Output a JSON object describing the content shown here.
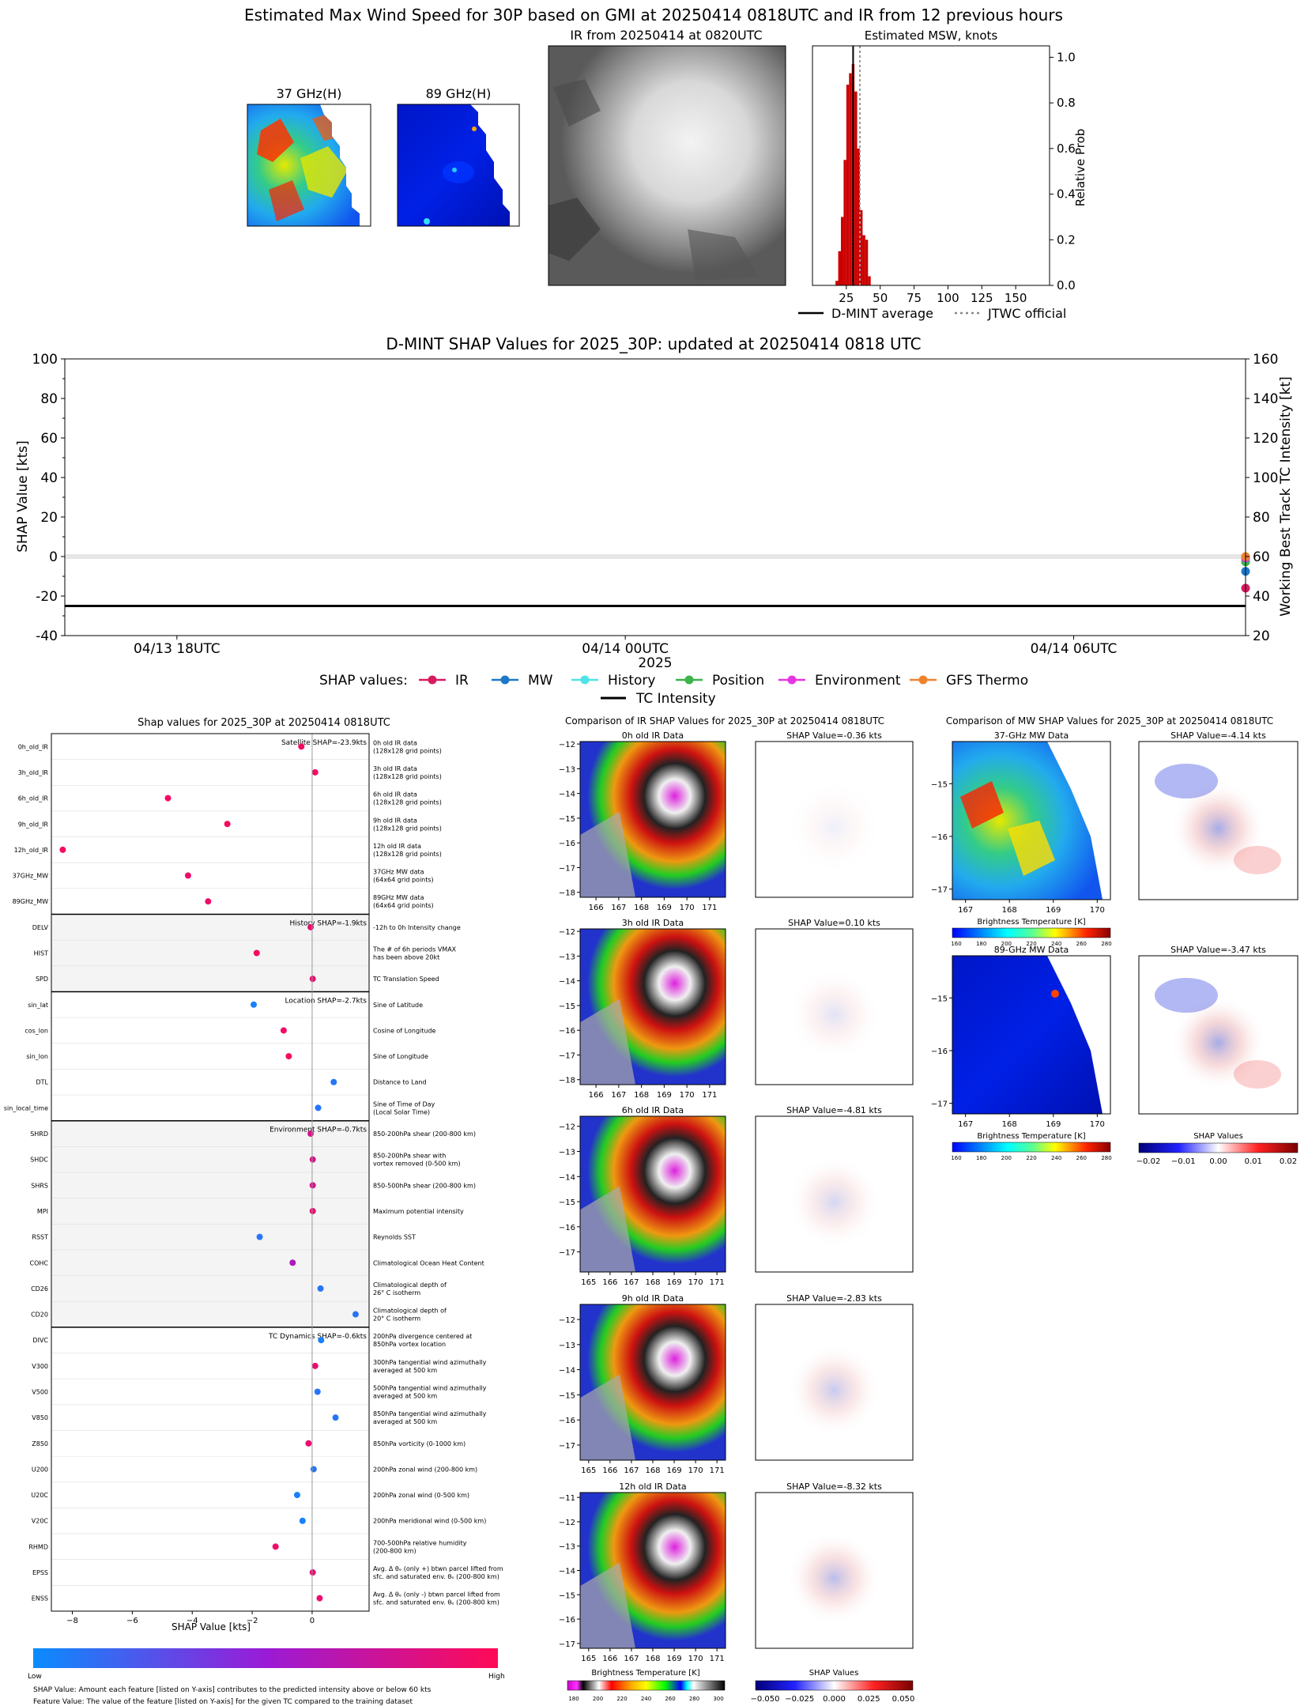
{
  "header": {
    "title": "Estimated Max Wind Speed for 30P based on GMI at 20250414 0818UTC and IR from 12 previous hours"
  },
  "top_panels": {
    "mw37_title": "37 GHz(H)",
    "mw89_title": "89 GHz(H)",
    "ir_title": "IR from 20250414 at 0820UTC",
    "msw_title": "Estimated MSW, knots",
    "msw_ylabel": "Relative Prob",
    "legend_dmint": "D-MINT average",
    "legend_jtwc": "JTWC official"
  },
  "shap_timeseries": {
    "title": "D-MINT SHAP Values for 2025_30P: updated at 20250414 0818 UTC",
    "ylabel_left": "SHAP Value [kts]",
    "ylabel_right": "Working Best Track TC Intensity [kt]",
    "xlabel": "2025",
    "legend_label": "SHAP values:",
    "tc_intensity_label": "TC Intensity"
  },
  "feature_panel": {
    "title": "Shap values for 2025_30P at 20250414 0818UTC",
    "xlabel": "SHAP Value [kts]",
    "cbar_low": "Low",
    "cbar_high": "High",
    "note1": "SHAP Value: Amount each feature [listed on Y-axis] contributes to the predicted intensity above or below 60 kts",
    "note2": "Feature Value: The value of the feature [listed on Y-axis] for the given TC compared to the training dataset"
  },
  "ir_compare": {
    "title": "Comparison of IR SHAP Values for 2025_30P at 20250414 0818UTC",
    "panels": [
      {
        "title": "0h old IR Data",
        "shap_title": "SHAP Value=-0.36 kts"
      },
      {
        "title": "3h old IR Data",
        "shap_title": "SHAP Value=0.10 kts"
      },
      {
        "title": "6h old IR Data",
        "shap_title": "SHAP Value=-4.81 kts"
      },
      {
        "title": "9h old IR Data",
        "shap_title": "SHAP Value=-2.83 kts"
      },
      {
        "title": "12h old IR Data",
        "shap_title": "SHAP Value=-8.32 kts"
      }
    ],
    "cbar_label": "Brightness Temperature [K]",
    "shap_cbar_label": "SHAP Values"
  },
  "mw_compare": {
    "title": "Comparison of MW SHAP Values for 2025_30P at 20250414 0818UTC",
    "panels": [
      {
        "title": "37-GHz MW Data",
        "shap_title": "SHAP Value=-4.14 kts"
      },
      {
        "title": "89-GHz MW Data",
        "shap_title": "SHAP Value=-3.47 kts"
      }
    ],
    "cbar_label": "Brightness Temperature [K]",
    "shap_cbar_label": "SHAP Values"
  },
  "chart_data": [
    {
      "type": "bar",
      "name": "msw_histogram",
      "title": "Estimated MSW, knots",
      "ylabel": "Relative Prob",
      "xlim": [
        0,
        175
      ],
      "ylim": [
        0,
        1.05
      ],
      "xticks": [
        25,
        50,
        75,
        100,
        125,
        150
      ],
      "yticks": [
        0.0,
        0.2,
        0.4,
        0.6,
        0.8,
        1.0
      ],
      "x": [
        18,
        20,
        22,
        24,
        26,
        28,
        30,
        32,
        34,
        36,
        38,
        40,
        42
      ],
      "values": [
        0.02,
        0.15,
        0.3,
        0.55,
        0.88,
        0.93,
        0.97,
        0.85,
        0.6,
        0.33,
        0.22,
        0.2,
        0.04
      ],
      "dmint_average": 30,
      "jtwc_official": 35,
      "legend_position": "below"
    },
    {
      "type": "line",
      "name": "shap_timeseries",
      "title": "D-MINT SHAP Values for 2025_30P: updated at 20250414 0818 UTC",
      "xlabel": "2025",
      "ylabel": "SHAP Value [kts]",
      "ylabel_right": "Working Best Track TC Intensity [kt]",
      "ylim": [
        -40,
        100
      ],
      "ylim_right": [
        20,
        160
      ],
      "yticks": [
        -40,
        -20,
        0,
        20,
        40,
        60,
        80,
        100
      ],
      "yticks_right": [
        20,
        40,
        60,
        80,
        100,
        120,
        140,
        160
      ],
      "xticks": [
        "04/13 18UTC",
        "04/14 00UTC",
        "04/14 06UTC"
      ],
      "x_hours": [
        0,
        6,
        12
      ],
      "xlim_hours": [
        -1.5,
        14.3
      ],
      "tc_intensity": {
        "x_hours": [
          -1.5,
          14.3
        ],
        "values": [
          35,
          35
        ]
      },
      "series": [
        {
          "name": "IR",
          "color": "#d81b60",
          "x_hours": [
            14.3
          ],
          "values": [
            -16
          ]
        },
        {
          "name": "MW",
          "color": "#1e78c8",
          "x_hours": [
            14.3
          ],
          "values": [
            -7.5
          ]
        },
        {
          "name": "History",
          "color": "#4fe3e8",
          "x_hours": [
            14.3
          ],
          "values": [
            -1.9
          ]
        },
        {
          "name": "Position",
          "color": "#3cb44b",
          "x_hours": [
            14.3
          ],
          "values": [
            -2.7
          ]
        },
        {
          "name": "Environment",
          "color": "#e535e6",
          "x_hours": [
            14.3
          ],
          "values": [
            -0.7
          ]
        },
        {
          "name": "GFS Thermo",
          "color": "#f0822d",
          "x_hours": [
            14.3
          ],
          "values": [
            0
          ]
        }
      ],
      "legend_position": "below"
    },
    {
      "type": "scatter",
      "name": "feature_shap",
      "title": "Shap values for 2025_30P at 20250414 0818UTC",
      "xlabel": "SHAP Value [kts]",
      "xlim": [
        -8.7,
        1.9
      ],
      "xticks": [
        -8,
        -6,
        -4,
        -2,
        0
      ],
      "groups": [
        {
          "label": "Satellite SHAP=-23.9kts",
          "shaded": false,
          "features": [
            {
              "name": "0h_old_IR",
              "desc": [
                "0h old IR data",
                "(128x128 grid points)"
              ],
              "shap": -0.36,
              "value": 0.95
            },
            {
              "name": "3h_old_IR",
              "desc": [
                "3h old IR data",
                "(128x128 grid points)"
              ],
              "shap": 0.1,
              "value": 0.95
            },
            {
              "name": "6h_old_IR",
              "desc": [
                "6h old IR data",
                "(128x128 grid points)"
              ],
              "shap": -4.81,
              "value": 0.95
            },
            {
              "name": "9h_old_IR",
              "desc": [
                "9h old IR data",
                "(128x128 grid points)"
              ],
              "shap": -2.83,
              "value": 0.95
            },
            {
              "name": "12h_old_IR",
              "desc": [
                "12h old IR data",
                "(128x128 grid points)"
              ],
              "shap": -8.32,
              "value": 0.95
            },
            {
              "name": "37GHz_MW",
              "desc": [
                "37GHz MW data",
                "(64x64 grid points)"
              ],
              "shap": -4.14,
              "value": 0.92
            },
            {
              "name": "89GHz_MW",
              "desc": [
                "89GHz MW data",
                "(64x64 grid points)"
              ],
              "shap": -3.47,
              "value": 0.92
            }
          ]
        },
        {
          "label": "History SHAP=-1.9kts",
          "shaded": true,
          "features": [
            {
              "name": "DELV",
              "desc": [
                "-12h to 0h Intensity change"
              ],
              "shap": -0.05,
              "value": 0.9
            },
            {
              "name": "HIST",
              "desc": [
                "The # of 6h periods VMAX",
                "has been above 20kt"
              ],
              "shap": -1.85,
              "value": 0.95
            },
            {
              "name": "SPD",
              "desc": [
                "TC Translation Speed"
              ],
              "shap": 0.02,
              "value": 0.9
            }
          ]
        },
        {
          "label": "Location SHAP=-2.7kts",
          "shaded": false,
          "features": [
            {
              "name": "sin_lat",
              "desc": [
                "Sine of Latitude"
              ],
              "shap": -1.95,
              "value": 0.05
            },
            {
              "name": "cos_lon",
              "desc": [
                "Cosine of Longitude"
              ],
              "shap": -0.95,
              "value": 0.92
            },
            {
              "name": "sin_lon",
              "desc": [
                "Sine of Longitude"
              ],
              "shap": -0.78,
              "value": 0.95
            },
            {
              "name": "DTL",
              "desc": [
                "Distance to Land"
              ],
              "shap": 0.72,
              "value": 0.1
            },
            {
              "name": "sin_local_time",
              "desc": [
                "Sine of Time of Day",
                "(Local Solar Time)"
              ],
              "shap": 0.2,
              "value": 0.1
            }
          ]
        },
        {
          "label": "Environment SHAP=-0.7kts",
          "shaded": true,
          "features": [
            {
              "name": "SHRD",
              "desc": [
                "850-200hPa shear (200-800 km)"
              ],
              "shap": -0.05,
              "value": 0.8
            },
            {
              "name": "SHDC",
              "desc": [
                "850-200hPa shear with",
                "vortex removed (0-500 km)"
              ],
              "shap": 0.02,
              "value": 0.8
            },
            {
              "name": "SHRS",
              "desc": [
                "850-500hPa shear (200-800 km)"
              ],
              "shap": 0.02,
              "value": 0.8
            },
            {
              "name": "MPI",
              "desc": [
                "Maximum potential intensity"
              ],
              "shap": 0.02,
              "value": 0.9
            },
            {
              "name": "RSST",
              "desc": [
                "Reynolds SST"
              ],
              "shap": -1.75,
              "value": 0.1
            },
            {
              "name": "COHC",
              "desc": [
                "Climatological Ocean Heat Content"
              ],
              "shap": -0.65,
              "value": 0.6
            },
            {
              "name": "CD26",
              "desc": [
                "Climatological depth of",
                "26° C isotherm"
              ],
              "shap": 0.28,
              "value": 0.1
            },
            {
              "name": "CD20",
              "desc": [
                "Climatological depth of",
                "20° C isotherm"
              ],
              "shap": 1.45,
              "value": 0.1
            }
          ]
        },
        {
          "label": "TC Dynamics SHAP=-0.6kts",
          "shaded": false,
          "features": [
            {
              "name": "DIVC",
              "desc": [
                "200hPa divergence centered at",
                "850hPa vortex location"
              ],
              "shap": 0.3,
              "value": 0.05
            },
            {
              "name": "V300",
              "desc": [
                "300hPa tangential wind azimuthally",
                "averaged at 500 km"
              ],
              "shap": 0.1,
              "value": 0.9
            },
            {
              "name": "V500",
              "desc": [
                "500hPa tangential wind azimuthally",
                "averaged at 500 km"
              ],
              "shap": 0.18,
              "value": 0.1
            },
            {
              "name": "V850",
              "desc": [
                "850hPa tangential wind azimuthally",
                "averaged at 500 km"
              ],
              "shap": 0.78,
              "value": 0.1
            },
            {
              "name": "Z850",
              "desc": [
                "850hPa vorticity (0-1000 km)"
              ],
              "shap": -0.12,
              "value": 0.9
            },
            {
              "name": "U200",
              "desc": [
                "200hPa zonal wind (200-800 km)"
              ],
              "shap": 0.05,
              "value": 0.1
            },
            {
              "name": "U20C",
              "desc": [
                "200hPa zonal wind (0-500 km)"
              ],
              "shap": -0.5,
              "value": 0.05
            },
            {
              "name": "V20C",
              "desc": [
                "200hPa meridional wind (0-500 km)"
              ],
              "shap": -0.32,
              "value": 0.05
            },
            {
              "name": "RHMD",
              "desc": [
                "700-500hPa relative humidity",
                "(200-800 km)"
              ],
              "shap": -1.22,
              "value": 0.92
            },
            {
              "name": "EPSS",
              "desc": [
                "Avg. Δ θₑ (only +) btwn parcel lifted from",
                "sfc. and saturated env. θₑ (200-800 km)"
              ],
              "shap": 0.02,
              "value": 0.9
            },
            {
              "name": "ENSS",
              "desc": [
                "Avg. Δ θₑ (only -) btwn parcel lifted from",
                "sfc. and saturated env. θₑ (200-800 km)"
              ],
              "shap": 0.25,
              "value": 0.9
            }
          ]
        }
      ]
    }
  ],
  "ir_axes": {
    "panels": [
      {
        "xticks": [
          166,
          167,
          168,
          169,
          170,
          171
        ],
        "xlim": [
          165.3,
          171.7
        ],
        "yticks": [
          -12,
          -13,
          -14,
          -15,
          -16,
          -17,
          -18
        ],
        "ylim": [
          -11.9,
          -18.2
        ]
      },
      {
        "xticks": [
          166,
          167,
          168,
          169,
          170,
          171
        ],
        "xlim": [
          165.3,
          171.7
        ],
        "yticks": [
          -12,
          -13,
          -14,
          -15,
          -16,
          -17,
          -18
        ],
        "ylim": [
          -11.9,
          -18.2
        ]
      },
      {
        "xticks": [
          165,
          166,
          167,
          168,
          169,
          170,
          171
        ],
        "xlim": [
          164.6,
          171.4
        ],
        "yticks": [
          -12,
          -13,
          -14,
          -15,
          -16,
          -17
        ],
        "ylim": [
          -11.6,
          -17.8
        ]
      },
      {
        "xticks": [
          165,
          166,
          167,
          168,
          169,
          170,
          171
        ],
        "xlim": [
          164.6,
          171.4
        ],
        "yticks": [
          -12,
          -13,
          -14,
          -15,
          -16,
          -17
        ],
        "ylim": [
          -11.4,
          -17.6
        ]
      },
      {
        "xticks": [
          165,
          166,
          167,
          168,
          169,
          170,
          171
        ],
        "xlim": [
          164.6,
          171.4
        ],
        "yticks": [
          -11,
          -12,
          -13,
          -14,
          -15,
          -16,
          -17
        ],
        "ylim": [
          -10.8,
          -17.2
        ]
      }
    ],
    "cbar_ticks": [
      "180",
      "200",
      "220",
      "240",
      "260",
      "280",
      "300"
    ],
    "shap_cbar_ticks": [
      "−0.050",
      "−0.025",
      "0.000",
      "0.025",
      "0.050"
    ]
  },
  "mw_axes": {
    "xticks": [
      167,
      168,
      169,
      170
    ],
    "xlim": [
      166.7,
      170.3
    ],
    "yticks": [
      -15,
      -16,
      -17
    ],
    "ylim": [
      -14.2,
      -17.2
    ],
    "cbar_ticks": [
      "160",
      "180",
      "200",
      "220",
      "240",
      "260",
      "280"
    ],
    "shap_cbar_ticks": [
      "−0.02",
      "−0.01",
      "0.00",
      "0.01",
      "0.02"
    ]
  }
}
